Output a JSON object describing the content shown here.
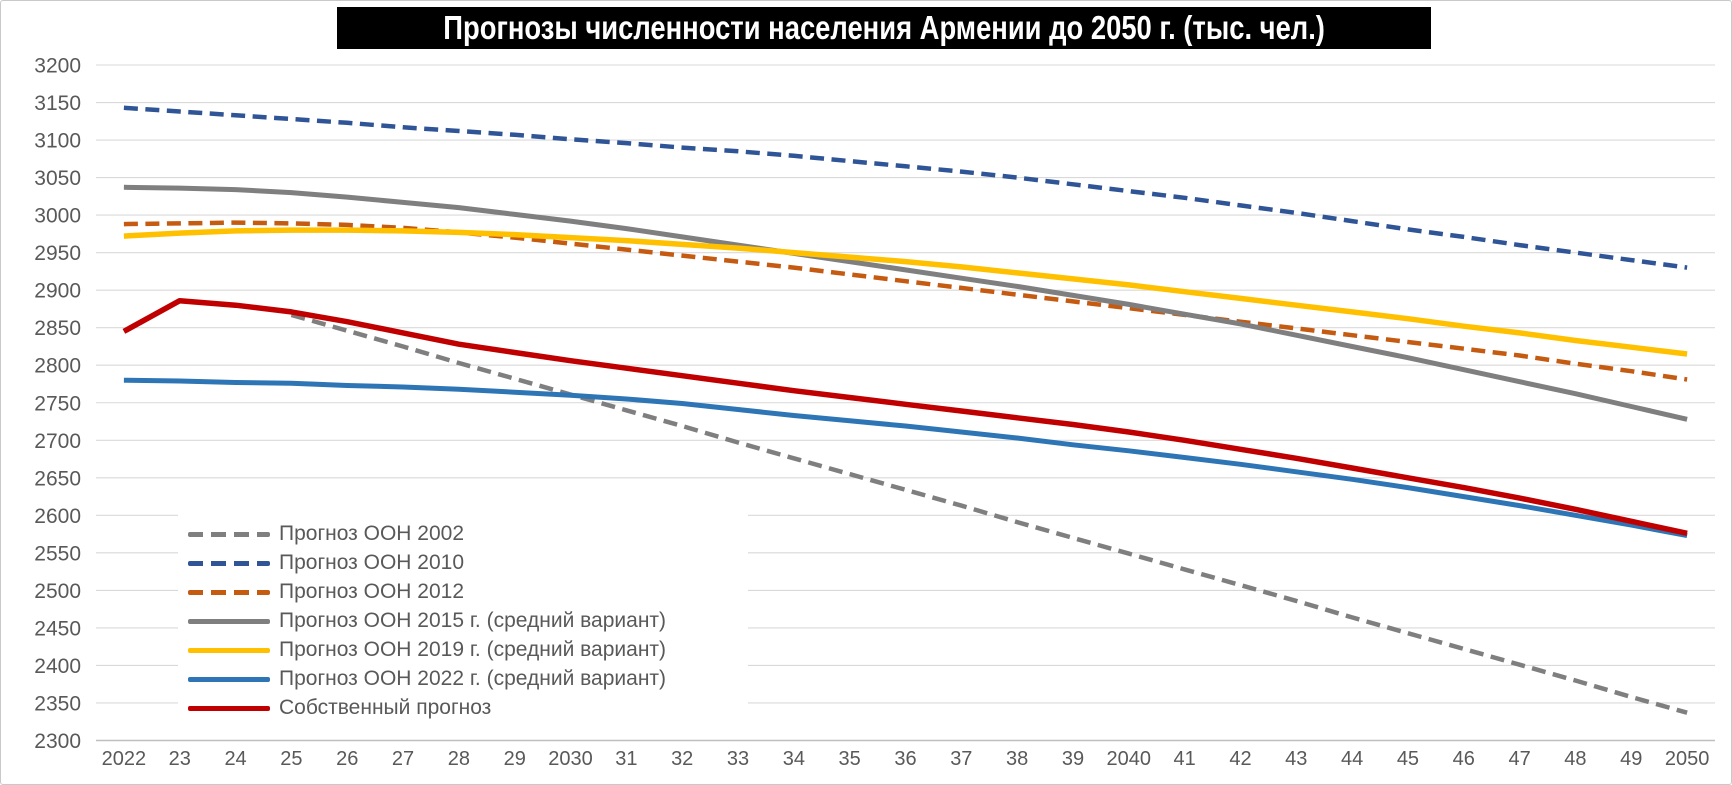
{
  "title": "Прогнозы численности населения Армении до 2050 г. (тыс. чел.)",
  "colors": {
    "title_bg": "#000000",
    "title_text": "#ffffff",
    "axis_text": "#595959",
    "gridline": "#d9d9d9",
    "axis_line": "#bfbfbf",
    "legend_bg": "#ffffff"
  },
  "chart_data": {
    "type": "line",
    "title": "Прогнозы численности населения Армении до 2050 г. (тыс. чел.)",
    "xlabel": "",
    "ylabel": "",
    "ylim": [
      2300,
      3200
    ],
    "ytick_step": 50,
    "grid": true,
    "legend_position": "inside-bottom-left",
    "x_labels": [
      "2022",
      "23",
      "24",
      "25",
      "26",
      "27",
      "28",
      "29",
      "2030",
      "31",
      "32",
      "33",
      "34",
      "35",
      "36",
      "37",
      "38",
      "39",
      "2040",
      "41",
      "42",
      "43",
      "44",
      "45",
      "46",
      "47",
      "48",
      "49",
      "2050"
    ],
    "series": [
      {
        "name": "Прогноз ООН 2002",
        "color": "#7f7f7f",
        "dash": true,
        "width": 4.5,
        "values": [
          null,
          null,
          null,
          2867,
          2846,
          2825,
          2803,
          2782,
          2761,
          2740,
          2719,
          2697,
          2676,
          2655,
          2634,
          2613,
          2591,
          2570,
          2549,
          2528,
          2507,
          2486,
          2464,
          2443,
          2422,
          2401,
          2380,
          2358,
          2337
        ]
      },
      {
        "name": "Прогноз ООН 2010",
        "color": "#2f5597",
        "dash": true,
        "width": 4.5,
        "values": [
          3143,
          3138,
          3133,
          3128,
          3123,
          3117,
          3112,
          3107,
          3101,
          3096,
          3090,
          3085,
          3079,
          3072,
          3065,
          3058,
          3050,
          3041,
          3032,
          3023,
          3013,
          3003,
          2992,
          2981,
          2971,
          2960,
          2950,
          2940,
          2930
        ]
      },
      {
        "name": "Прогноз ООН 2012",
        "color": "#c55a11",
        "dash": true,
        "width": 4.5,
        "values": [
          2988,
          2989,
          2990,
          2989,
          2987,
          2983,
          2977,
          2970,
          2962,
          2954,
          2946,
          2938,
          2930,
          2921,
          2912,
          2903,
          2894,
          2885,
          2876,
          2867,
          2858,
          2849,
          2840,
          2831,
          2822,
          2813,
          2802,
          2792,
          2781
        ]
      },
      {
        "name": "Прогноз ООН 2015 г. (средний вариант)",
        "color": "#7f7f7f",
        "dash": false,
        "width": 5,
        "values": [
          3037,
          3036,
          3034,
          3030,
          3024,
          3017,
          3010,
          3001,
          2992,
          2982,
          2971,
          2960,
          2949,
          2938,
          2927,
          2916,
          2905,
          2893,
          2881,
          2868,
          2855,
          2840,
          2825,
          2810,
          2794,
          2778,
          2762,
          2745,
          2728
        ]
      },
      {
        "name": "Прогноз ООН 2019 г. (средний вариант)",
        "color": "#ffc000",
        "dash": false,
        "width": 5.5,
        "values": [
          2972,
          2976,
          2979,
          2980,
          2980,
          2979,
          2977,
          2974,
          2970,
          2966,
          2961,
          2956,
          2950,
          2944,
          2938,
          2931,
          2923,
          2915,
          2907,
          2898,
          2889,
          2880,
          2871,
          2862,
          2852,
          2843,
          2833,
          2824,
          2815
        ]
      },
      {
        "name": "Прогноз ООН 2022 г. (средний вариант)",
        "color": "#2e75b6",
        "dash": false,
        "width": 5,
        "values": [
          2780,
          2779,
          2777,
          2776,
          2773,
          2771,
          2768,
          2764,
          2760,
          2755,
          2749,
          2741,
          2733,
          2726,
          2719,
          2711,
          2703,
          2694,
          2686,
          2677,
          2668,
          2658,
          2648,
          2637,
          2625,
          2613,
          2600,
          2587,
          2573
        ]
      },
      {
        "name": "Собственный прогноз",
        "color": "#c00000",
        "dash": false,
        "width": 5.5,
        "values": [
          2845,
          2886,
          2880,
          2871,
          2858,
          2843,
          2828,
          2817,
          2806,
          2796,
          2786,
          2776,
          2766,
          2757,
          2748,
          2739,
          2730,
          2721,
          2711,
          2700,
          2688,
          2676,
          2663,
          2650,
          2637,
          2623,
          2608,
          2592,
          2576
        ]
      }
    ]
  }
}
